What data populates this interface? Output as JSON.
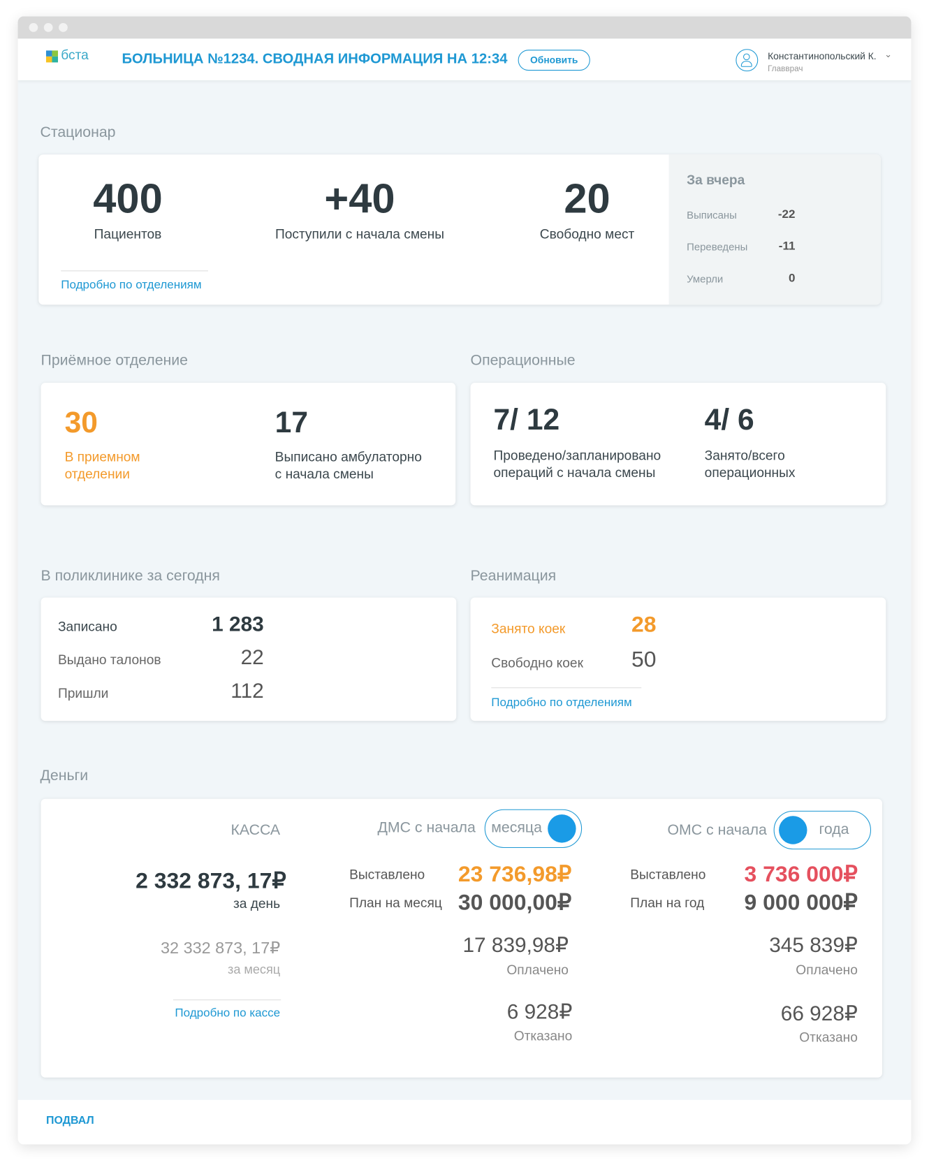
{
  "header": {
    "title": "БОЛЬНИЦА №1234. СВОДНАЯ ИНФОРМАЦИЯ НА 12:34",
    "refresh": "Обновить",
    "user_name": "Константинопольский К.",
    "user_role": "Главврач",
    "logo": "бста"
  },
  "stationary": {
    "title": "Стационар",
    "patients": {
      "value": "400",
      "label": "Пациентов"
    },
    "arrived": {
      "value": "+40",
      "label": "Поступили с начала смены"
    },
    "free": {
      "value": "20",
      "label": "Свободно мест"
    },
    "link": "Подробно по отделениям",
    "yesterday": {
      "title": "За вчера",
      "rows": [
        {
          "label": "Выписаны",
          "value": "-22"
        },
        {
          "label": "Переведены",
          "value": "-11"
        },
        {
          "label": "Умерли",
          "value": "0"
        }
      ]
    }
  },
  "reception": {
    "title": "Приёмное отделение",
    "in_dept": {
      "value": "30",
      "label1": "В приемном",
      "label2": "отделении"
    },
    "discharged": {
      "value": "17",
      "label1": "Выписано амбулаторно",
      "label2": "с начала смены"
    }
  },
  "operating": {
    "title": "Операционные",
    "ops": {
      "value": "7/ 12",
      "label1": "Проведено/запланировано",
      "label2": "операций с начала смены"
    },
    "rooms": {
      "value": "4/ 6",
      "label1": "Занято/всего",
      "label2": "операционных"
    }
  },
  "clinic": {
    "title": "В поликлинике за сегодня",
    "rows": [
      {
        "label": "Записано",
        "value": "1 283"
      },
      {
        "label": "Выдано талонов",
        "value": "22"
      },
      {
        "label": "Пришли",
        "value": "112"
      }
    ]
  },
  "icu": {
    "title": "Реанимация",
    "occupied": {
      "label": "Занято коек",
      "value": "28"
    },
    "free": {
      "label": "Свободно коек",
      "value": "50"
    },
    "link": "Подробно по отделениям"
  },
  "money": {
    "title": "Деньги",
    "kassa": {
      "title": "КАССА",
      "day_value": "2 332 873, 17₽",
      "day_label": "за день",
      "month_value": "32 332 873, 17₽",
      "month_label": "за месяц",
      "link": "Подробно по кассе"
    },
    "dms": {
      "title": "ДМС с начала",
      "toggle": "месяца",
      "billed_label": "Выставлено",
      "billed": "23 736,98₽",
      "plan_label": "План на месяц",
      "plan": "30 000,00₽",
      "paid": "17 839,98₽",
      "paid_label": "Оплачено",
      "refused": "6 928₽",
      "refused_label": "Отказано"
    },
    "oms": {
      "title": "ОМС с начала",
      "toggle": "года",
      "billed_label": "Выставлено",
      "billed": "3 736 000₽",
      "plan_label": "План на год",
      "plan": "9 000 000₽",
      "paid": "345 839₽",
      "paid_label": "Оплачено",
      "refused": "66 928₽",
      "refused_label": "Отказано"
    }
  },
  "footer": {
    "label": "ПОДВАЛ"
  },
  "colors": {
    "accent": "#1e98d3",
    "orange": "#f39a2b",
    "red": "#e5505e",
    "text": "#2e3a40"
  }
}
